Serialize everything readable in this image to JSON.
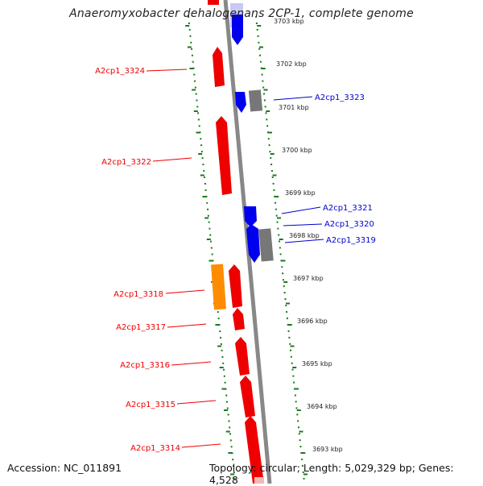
{
  "title": "Anaeromyxobacter dehalogenans 2CP-1, complete genome",
  "footer": {
    "accession": "Accession: NC_011891",
    "summary": "Topology: circular; Length: 5,029,329 bp; Genes: 4,528"
  },
  "colors": {
    "forward_cds": "#0000ee",
    "reverse_cds": "#ee0000",
    "rna_or_other": "#ff8c00",
    "gray_feature": "#777777",
    "backbone": "#888888",
    "tick_marks": "#1a7a1a"
  },
  "kbp_ticks": [
    "3703 kbp",
    "3702 kbp",
    "3701 kbp",
    "3700 kbp",
    "3699 kbp",
    "3698 kbp",
    "3697 kbp",
    "3696 kbp",
    "3695 kbp",
    "3694 kbp",
    "3693 kbp"
  ],
  "genes": {
    "right": [
      "A2cp1_3323",
      "A2cp1_3321",
      "A2cp1_3320",
      "A2cp1_3319"
    ],
    "left": [
      "A2cp1_3324",
      "A2cp1_3322",
      "A2cp1_3318",
      "A2cp1_3317",
      "A2cp1_3316",
      "A2cp1_3315",
      "A2cp1_3314"
    ]
  }
}
